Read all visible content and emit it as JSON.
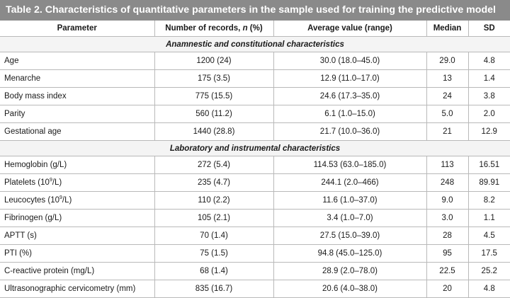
{
  "title": "Table 2. Characteristics of quantitative parameters in the sample used for training the predictive model",
  "headers": {
    "parameter": "Parameter",
    "records_main": "Number of records, ",
    "records_n": "n",
    "records_pct": " (%)",
    "average": "Average value (range)",
    "median": "Median",
    "sd": "SD"
  },
  "sections": [
    {
      "title": "Anamnestic and constitutional characteristics",
      "rows": [
        {
          "parameter": "Age",
          "records": "1200 (24)",
          "average": "30.0 (18.0–45.0)",
          "median": "29.0",
          "sd": "4.8"
        },
        {
          "parameter": "Menarche",
          "records": "175 (3.5)",
          "average": "12.9 (11.0–17.0)",
          "median": "13",
          "sd": "1.4"
        },
        {
          "parameter": "Body mass index",
          "records": "775 (15.5)",
          "average": "24.6 (17.3–35.0)",
          "median": "24",
          "sd": "3.8"
        },
        {
          "parameter": "Parity",
          "records": "560 (11.2)",
          "average": "6.1 (1.0–15.0)",
          "median": "5.0",
          "sd": "2.0"
        },
        {
          "parameter": "Gestational age",
          "records": "1440 (28.8)",
          "average": "21.7 (10.0–36.0)",
          "median": "21",
          "sd": "12.9"
        }
      ]
    },
    {
      "title": "Laboratory and instrumental characteristics",
      "rows": [
        {
          "parameter": "Hemoglobin (g/L)",
          "records": "272 (5.4)",
          "average": "114.53 (63.0–185.0)",
          "median": "113",
          "sd": "16.51"
        },
        {
          "parameter_pre": "Platelets (10",
          "parameter_sup": "9",
          "parameter_post": "/L)",
          "records": "235 (4.7)",
          "average": "244.1 (2.0–466)",
          "median": "248",
          "sd": "89.91"
        },
        {
          "parameter_pre": "Leucocytes (10",
          "parameter_sup": "9",
          "parameter_post": "/L)",
          "records": "110 (2.2)",
          "average": "11.6 (1.0–37.0)",
          "median": "9.0",
          "sd": "8.2"
        },
        {
          "parameter": "Fibrinogen (g/L)",
          "records": "105 (2.1)",
          "average": "3.4 (1.0–7.0)",
          "median": "3.0",
          "sd": "1.1"
        },
        {
          "parameter": "APTT (s)",
          "records": "70 (1.4)",
          "average": "27.5 (15.0–39.0)",
          "median": "28",
          "sd": "4.5"
        },
        {
          "parameter": "PTI (%)",
          "records": "75 (1.5)",
          "average": "94.8 (45.0–125.0)",
          "median": "95",
          "sd": "17.5"
        },
        {
          "parameter": "C-reactive protein (mg/L)",
          "records": "68 (1.4)",
          "average": "28.9 (2.0–78.0)",
          "median": "22.5",
          "sd": "25.2"
        },
        {
          "parameter": "Ultrasonographic cervicometry (mm)",
          "records": "835 (16.7)",
          "average": "20.6 (4.0–38.0)",
          "median": "20",
          "sd": "4.8"
        }
      ]
    }
  ]
}
